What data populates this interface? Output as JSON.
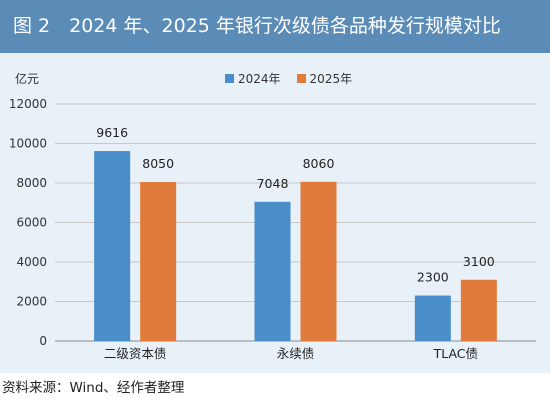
{
  "header": {
    "title": "图 2　2024 年、2025 年银行次级债各品种发行规模对比"
  },
  "chart_data": {
    "type": "bar",
    "unit": "亿元",
    "categories": [
      "二级资本债",
      "永续债",
      "TLAC债"
    ],
    "series": [
      {
        "name": "2024年",
        "values": [
          9616,
          7048,
          2300
        ],
        "color": "#4a8ec9"
      },
      {
        "name": "2025年",
        "values": [
          8050,
          8060,
          3100
        ],
        "color": "#e07b3c"
      }
    ],
    "ylim": [
      0,
      12000
    ],
    "yticks": [
      0,
      2000,
      4000,
      6000,
      8000,
      10000,
      12000
    ],
    "grid": true,
    "legend": "top-center"
  },
  "footer": {
    "source": "资料来源：Wind、经作者整理"
  }
}
